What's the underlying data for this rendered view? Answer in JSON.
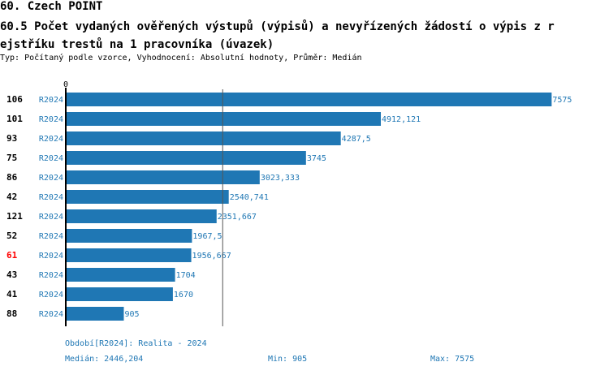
{
  "title": "60. Czech POINT",
  "subtitle_line1": "60.5 Počet vydaných ověřených výstupů (výpisů) a nevyřízených žádostí o výpis z r",
  "subtitle_line2": "ejstříku trestů na 1 pracovníka (úvazek)",
  "info": "Typ: Počítaný podle vzorce, Vyhodnocení: Absolutní hodnoty, Průměr: Medián",
  "colors": {
    "bar": "#1f77b4",
    "highlight": "#ff0000",
    "median_line": "#555555"
  },
  "chart_data": {
    "type": "bar",
    "orientation": "horizontal",
    "axis_zero_label": "0",
    "categories": [
      "106",
      "101",
      "93",
      "75",
      "86",
      "42",
      "121",
      "52",
      "61",
      "43",
      "41",
      "88"
    ],
    "highlighted": "61",
    "series": [
      {
        "name": "R2024",
        "values": [
          7575,
          4912.121,
          4287.5,
          3745,
          3023.333,
          2540.741,
          2351.667,
          1967.5,
          1956.667,
          1704,
          1670,
          905
        ]
      }
    ],
    "value_labels": [
      "7575",
      "4912,121",
      "4287,5",
      "3745",
      "3023,333",
      "2540,741",
      "2351,667",
      "1967,5",
      "1956,667",
      "1704",
      "1670",
      "905"
    ],
    "median": 2446.204,
    "xlim": [
      0,
      7925
    ]
  },
  "footer": {
    "period": "Období[R2024]: Realita - 2024",
    "median": "Medián: 2446,204",
    "min": "Min: 905",
    "max": "Max: 7575"
  }
}
